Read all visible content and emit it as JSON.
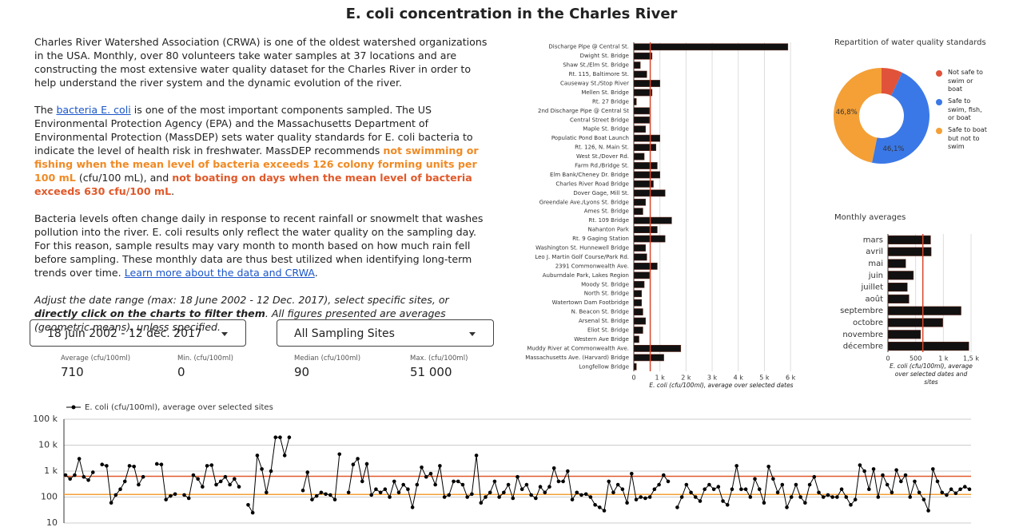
{
  "title": "E. coli concentration in the Charles River",
  "intro": {
    "p1": "Charles River Watershed Association (CRWA) is one of the oldest watershed organizations in the USA. Monthly, over 80 volunteers take water samples at 37 locations and are constructing the most extensive water quality dataset for the Charles River in order to help understand the river system and the dynamic evolution of the river.",
    "p2": [
      "The ",
      "bacteria E. coli",
      " is one of the most important components sampled. The US Environmental Protection Agency (EPA) and the Massachusetts Department of Environmental Protection (MassDEP) sets water quality standards for E. coli bacteria to indicate the level of health risk in freshwater. MassDEP recommends ",
      "not swimming or fishing when the mean level of bacteria exceeds 126 colony forming units per 100 mL",
      " (cfu/100 mL), and ",
      "not boating on days when the mean level of bacteria exceeds 630 cfu/100 mL",
      "."
    ],
    "p3": [
      "Bacteria levels often change daily in response to recent rainfall or snowmelt that washes pollution into the river. E. coli results only reflect the water quality on the sampling day. For this reason, sample results may vary month to month based on how much rain fell before sampling. These monthly data are thus best utilized when identifying long-term trends over time. ",
      "Learn more about the data and CRWA",
      "."
    ],
    "p4": [
      "Adjust the date range (max: 18 June 2002 - 12 Dec. 2017), select specific sites, or ",
      "directly click on the charts to filter them",
      ". All figures presented are averages (geometric means), unless specified."
    ]
  },
  "controls": {
    "date_range": "18 juin 2002 - 12 déc. 2017",
    "sites": "All Sampling Sites"
  },
  "stats": [
    {
      "label": "Average (cfu/100ml)",
      "value": "710"
    },
    {
      "label": "Min. (cfu/100ml)",
      "value": "0"
    },
    {
      "label": "Median (cfu/100ml)",
      "value": "90"
    },
    {
      "label": "Max. (cfu/100ml)",
      "value": "51 000"
    }
  ],
  "chart_data": [
    {
      "type": "bar",
      "orientation": "horizontal",
      "color": "#111111",
      "categories": [
        "Discharge Pipe @ Central St.",
        "Dwight St. Bridge",
        "Shaw St./Elm St. Bridge",
        "Rt. 115, Baltimore St.",
        "Causeway St./Stop River",
        "Mellen St. Bridge",
        "Rt. 27 Bridge",
        "2nd Discharge Pipe @ Central St",
        "Central Street Bridge",
        "Maple St. Bridge",
        "Populatic Pond Boat Launch",
        "Rt. 126, N. Main St.",
        "West St./Dover Rd.",
        "Farm Rd./Bridge St.",
        "Elm Bank/Cheney Dr. Bridge",
        "Charles River Road Bridge",
        "Dover Gage, Mill St.",
        "Greendale Ave./Lyons St. Bridge",
        "Ames St. Bridge",
        "Rt. 109 Bridge",
        "Nahanton Park",
        "Rt. 9 Gaging Station",
        "Washington St. Hunnewell Bridge",
        "Leo J. Martin Golf Course/Park Rd.",
        "2391 Commonwealth Ave.",
        "Auburndale Park, Lakes Region",
        "Moody St. Bridge",
        "North St. Bridge",
        "Watertown Dam Footbridge",
        "N. Beacon St. Bridge",
        "Arsenal St. Bridge",
        "Eliot St. Bridge",
        "Western Ave Bridge",
        "Muddy River at Commonwealth Ave.",
        "Massachusetts Ave. (Harvard) Bridge",
        "Longfellow Bridge"
      ],
      "values": [
        5900,
        700,
        250,
        500,
        1000,
        700,
        100,
        600,
        600,
        450,
        1000,
        850,
        400,
        900,
        1000,
        750,
        1200,
        450,
        350,
        1450,
        900,
        1200,
        450,
        500,
        900,
        600,
        400,
        300,
        300,
        350,
        450,
        350,
        200,
        1800,
        1150,
        100
      ],
      "xlim": [
        0,
        6700
      ],
      "xticks": [
        0,
        {
          "value": 1000,
          "label": "1 k"
        },
        {
          "value": 2000,
          "label": "2 k"
        },
        {
          "value": 3000,
          "label": "3 k"
        },
        {
          "value": 4000,
          "label": "4 k"
        },
        {
          "value": 5000,
          "label": "5 k"
        },
        {
          "value": 6000,
          "label": "6 k"
        }
      ],
      "grid": true,
      "reference_line": {
        "value": 630,
        "color": "#d9472b"
      },
      "x_label": "E. coli (cfu/100ml), average over selected dates"
    },
    {
      "type": "pie",
      "title": "Repartition of water quality standards",
      "categories": [
        "Not safe to swim or boat",
        "Safe to swim, fish, or boat",
        "Safe to boat but not to swim"
      ],
      "values": [
        7.1,
        46.1,
        46.8
      ],
      "value_labels": [
        null,
        "46,1%",
        "46,8%"
      ],
      "colors": [
        "#e0533a",
        "#3b78e7",
        "#f4a037"
      ],
      "legend": "right"
    },
    {
      "type": "bar",
      "orientation": "horizontal",
      "title": "Monthly averages",
      "color": "#111111",
      "categories": [
        "mars",
        "avril",
        "mai",
        "juin",
        "juillet",
        "août",
        "septembre",
        "octobre",
        "novembre",
        "décembre"
      ],
      "values": [
        770,
        780,
        320,
        460,
        350,
        380,
        1320,
        990,
        590,
        1460
      ],
      "xlim": [
        0,
        1500
      ],
      "xticks": [
        0,
        500,
        {
          "value": 1000,
          "label": "1 k"
        },
        {
          "value": 1500,
          "label": "1,5 k"
        }
      ],
      "grid": true,
      "reference_line": {
        "value": 630,
        "color": "#d9472b"
      },
      "x_label": "E. coli (cfu/100ml), average over selected dates and sites"
    },
    {
      "type": "line",
      "log_scale": true,
      "grid": true,
      "series": [
        {
          "name": "E. coli (cfu/100ml), average over selected sites",
          "color": "#000000",
          "values": [
            700,
            500,
            700,
            3000,
            600,
            450,
            900,
            null,
            1800,
            1600,
            60,
            120,
            200,
            400,
            1600,
            1500,
            300,
            600,
            null,
            null,
            1900,
            1800,
            80,
            110,
            130,
            null,
            120,
            90,
            700,
            500,
            250,
            1600,
            1700,
            300,
            400,
            600,
            300,
            500,
            250,
            null,
            50,
            25,
            4000,
            1200,
            150,
            1000,
            20000,
            20000,
            4000,
            20000,
            null,
            null,
            180,
            900,
            80,
            110,
            150,
            130,
            120,
            80,
            4500,
            null,
            150,
            1800,
            3000,
            400,
            1900,
            120,
            200,
            150,
            200,
            100,
            400,
            150,
            300,
            200,
            40,
            300,
            1400,
            600,
            800,
            300,
            1600,
            100,
            120,
            400,
            400,
            300,
            100,
            130,
            4000,
            60,
            100,
            150,
            400,
            100,
            150,
            300,
            90,
            600,
            200,
            300,
            120,
            90,
            250,
            150,
            250,
            1300,
            400,
            400,
            1000,
            80,
            150,
            120,
            130,
            100,
            50,
            40,
            30,
            400,
            150,
            300,
            200,
            60,
            800,
            80,
            100,
            90,
            100,
            200,
            300,
            700,
            400,
            null,
            40,
            100,
            300,
            150,
            100,
            70,
            200,
            300,
            200,
            250,
            70,
            50,
            200,
            1600,
            200,
            200,
            100,
            500,
            200,
            60,
            1500,
            500,
            150,
            300,
            40,
            100,
            300,
            100,
            60,
            300,
            600,
            150,
            100,
            120,
            100,
            100,
            200,
            100,
            50,
            80,
            1700,
            1000,
            200,
            1200,
            100,
            700,
            300,
            150,
            1100,
            400,
            700,
            100,
            400,
            150,
            80,
            30,
            1200,
            400,
            150,
            120,
            200,
            140,
            200,
            250,
            200
          ]
        }
      ],
      "ylim": [
        10,
        100000
      ],
      "yticks": [
        10,
        100,
        {
          "value": 1000,
          "label": "1 k"
        },
        {
          "value": 10000,
          "label": "10 k"
        },
        {
          "value": 100000,
          "label": "100 k"
        }
      ],
      "reference_lines": [
        {
          "value": 630,
          "color": "#e05a2b"
        },
        {
          "value": 126,
          "color": "#f4a037"
        }
      ]
    }
  ]
}
